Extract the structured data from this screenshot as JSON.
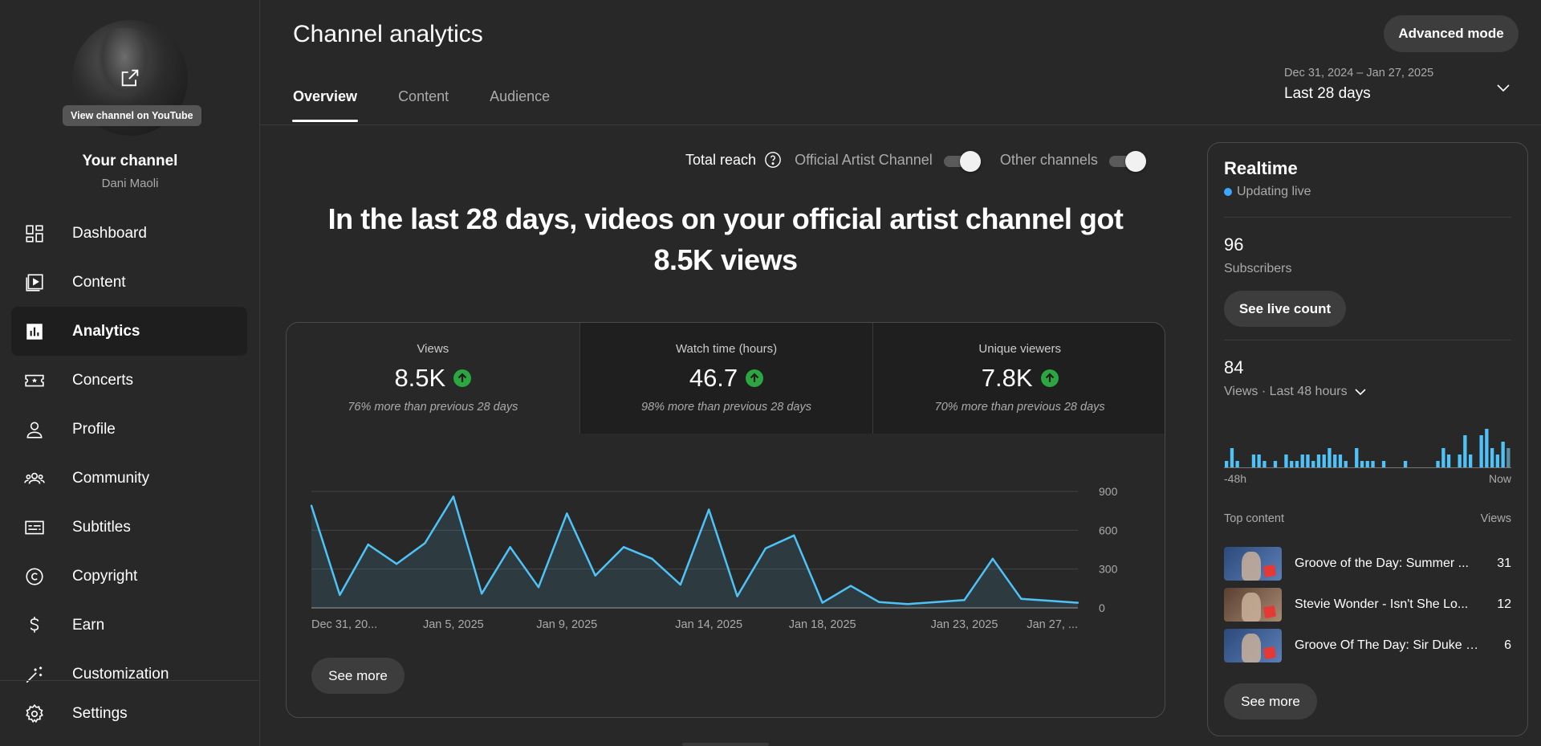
{
  "sidebar": {
    "view_channel": "View channel on YouTube",
    "your_channel": "Your channel",
    "handle": "Dani Maoli",
    "items": [
      {
        "label": "Dashboard",
        "icon": "dashboard-icon"
      },
      {
        "label": "Content",
        "icon": "content-icon"
      },
      {
        "label": "Analytics",
        "icon": "analytics-icon",
        "active": true
      },
      {
        "label": "Concerts",
        "icon": "concerts-icon"
      },
      {
        "label": "Profile",
        "icon": "profile-icon"
      },
      {
        "label": "Community",
        "icon": "community-icon"
      },
      {
        "label": "Subtitles",
        "icon": "subtitles-icon"
      },
      {
        "label": "Copyright",
        "icon": "copyright-icon"
      },
      {
        "label": "Earn",
        "icon": "earn-icon"
      },
      {
        "label": "Customization",
        "icon": "customization-icon"
      }
    ],
    "settings": "Settings"
  },
  "header": {
    "title": "Channel analytics",
    "advanced_mode": "Advanced mode",
    "tabs": [
      "Overview",
      "Content",
      "Audience"
    ],
    "date_range_dates": "Dec 31, 2024 – Jan 27, 2025",
    "date_range_label": "Last 28 days"
  },
  "reach": {
    "label": "Total reach",
    "official_artist_channel": "Official Artist Channel",
    "other_channels": "Other channels"
  },
  "headline": "In the last 28 days, videos on your official artist channel got 8.5K views",
  "metrics": [
    {
      "label": "Views",
      "value": "8.5K",
      "delta": "76% more than previous 28 days"
    },
    {
      "label": "Watch time (hours)",
      "value": "46.7",
      "delta": "98% more than previous 28 days"
    },
    {
      "label": "Unique viewers",
      "value": "7.8K",
      "delta": "70% more than previous 28 days"
    }
  ],
  "chart_data": {
    "type": "area",
    "x": [
      "Dec 31, 2024",
      "Jan 1",
      "Jan 2",
      "Jan 3",
      "Jan 4",
      "Jan 5, 2025",
      "Jan 6",
      "Jan 7",
      "Jan 8",
      "Jan 9, 2025",
      "Jan 10",
      "Jan 11",
      "Jan 12",
      "Jan 13",
      "Jan 14, 2025",
      "Jan 15",
      "Jan 16",
      "Jan 17",
      "Jan 18, 2025",
      "Jan 19",
      "Jan 20",
      "Jan 21",
      "Jan 22",
      "Jan 23, 2025",
      "Jan 24",
      "Jan 25",
      "Jan 26",
      "Jan 27, 2025"
    ],
    "x_tick_labels": [
      "Dec 31, 20...",
      "Jan 5, 2025",
      "Jan 9, 2025",
      "Jan 14, 2025",
      "Jan 18, 2025",
      "Jan 23, 2025",
      "Jan 27, ..."
    ],
    "x_tick_index": [
      0,
      5,
      9,
      14,
      18,
      23,
      27
    ],
    "series": [
      {
        "values": [
          790,
          100,
          490,
          340,
          500,
          860,
          110,
          470,
          160,
          730,
          250,
          470,
          380,
          180,
          760,
          90,
          460,
          560,
          40,
          170,
          45,
          30,
          45,
          60,
          380,
          70,
          55,
          40
        ]
      }
    ],
    "y_ticks": [
      0,
      300,
      600,
      900
    ],
    "ylim": [
      0,
      900
    ],
    "color": "#4fc3f7",
    "grid": true
  },
  "see_more": "See more",
  "realtime": {
    "title": "Realtime",
    "live": "Updating live",
    "subscribers": "96",
    "subscribers_label": "Subscribers",
    "see_live_count": "See live count",
    "views": "84",
    "views_label": "Views · Last 48 hours",
    "bars": [
      1,
      3,
      1,
      0,
      0,
      2,
      2,
      1,
      0,
      1,
      0,
      2,
      1,
      1,
      2,
      2,
      1,
      2,
      2,
      3,
      2,
      2,
      1,
      0,
      3,
      1,
      1,
      1,
      0,
      1,
      0,
      0,
      0,
      1,
      0,
      0,
      0,
      0,
      0,
      1,
      3,
      2,
      0,
      2,
      5,
      2,
      0,
      5,
      6,
      3,
      2,
      4,
      3
    ],
    "axis_left": "-48h",
    "axis_right": "Now",
    "top_content_label": "Top content",
    "top_content_views_label": "Views",
    "top_content": [
      {
        "title": "Groove of the Day: Summer ...",
        "views": "31"
      },
      {
        "title": "Stevie Wonder - Isn't She Lo...",
        "views": "12"
      },
      {
        "title": "Groove Of The Day: Sir Duke b...",
        "views": "6"
      }
    ],
    "see_more": "See more"
  }
}
